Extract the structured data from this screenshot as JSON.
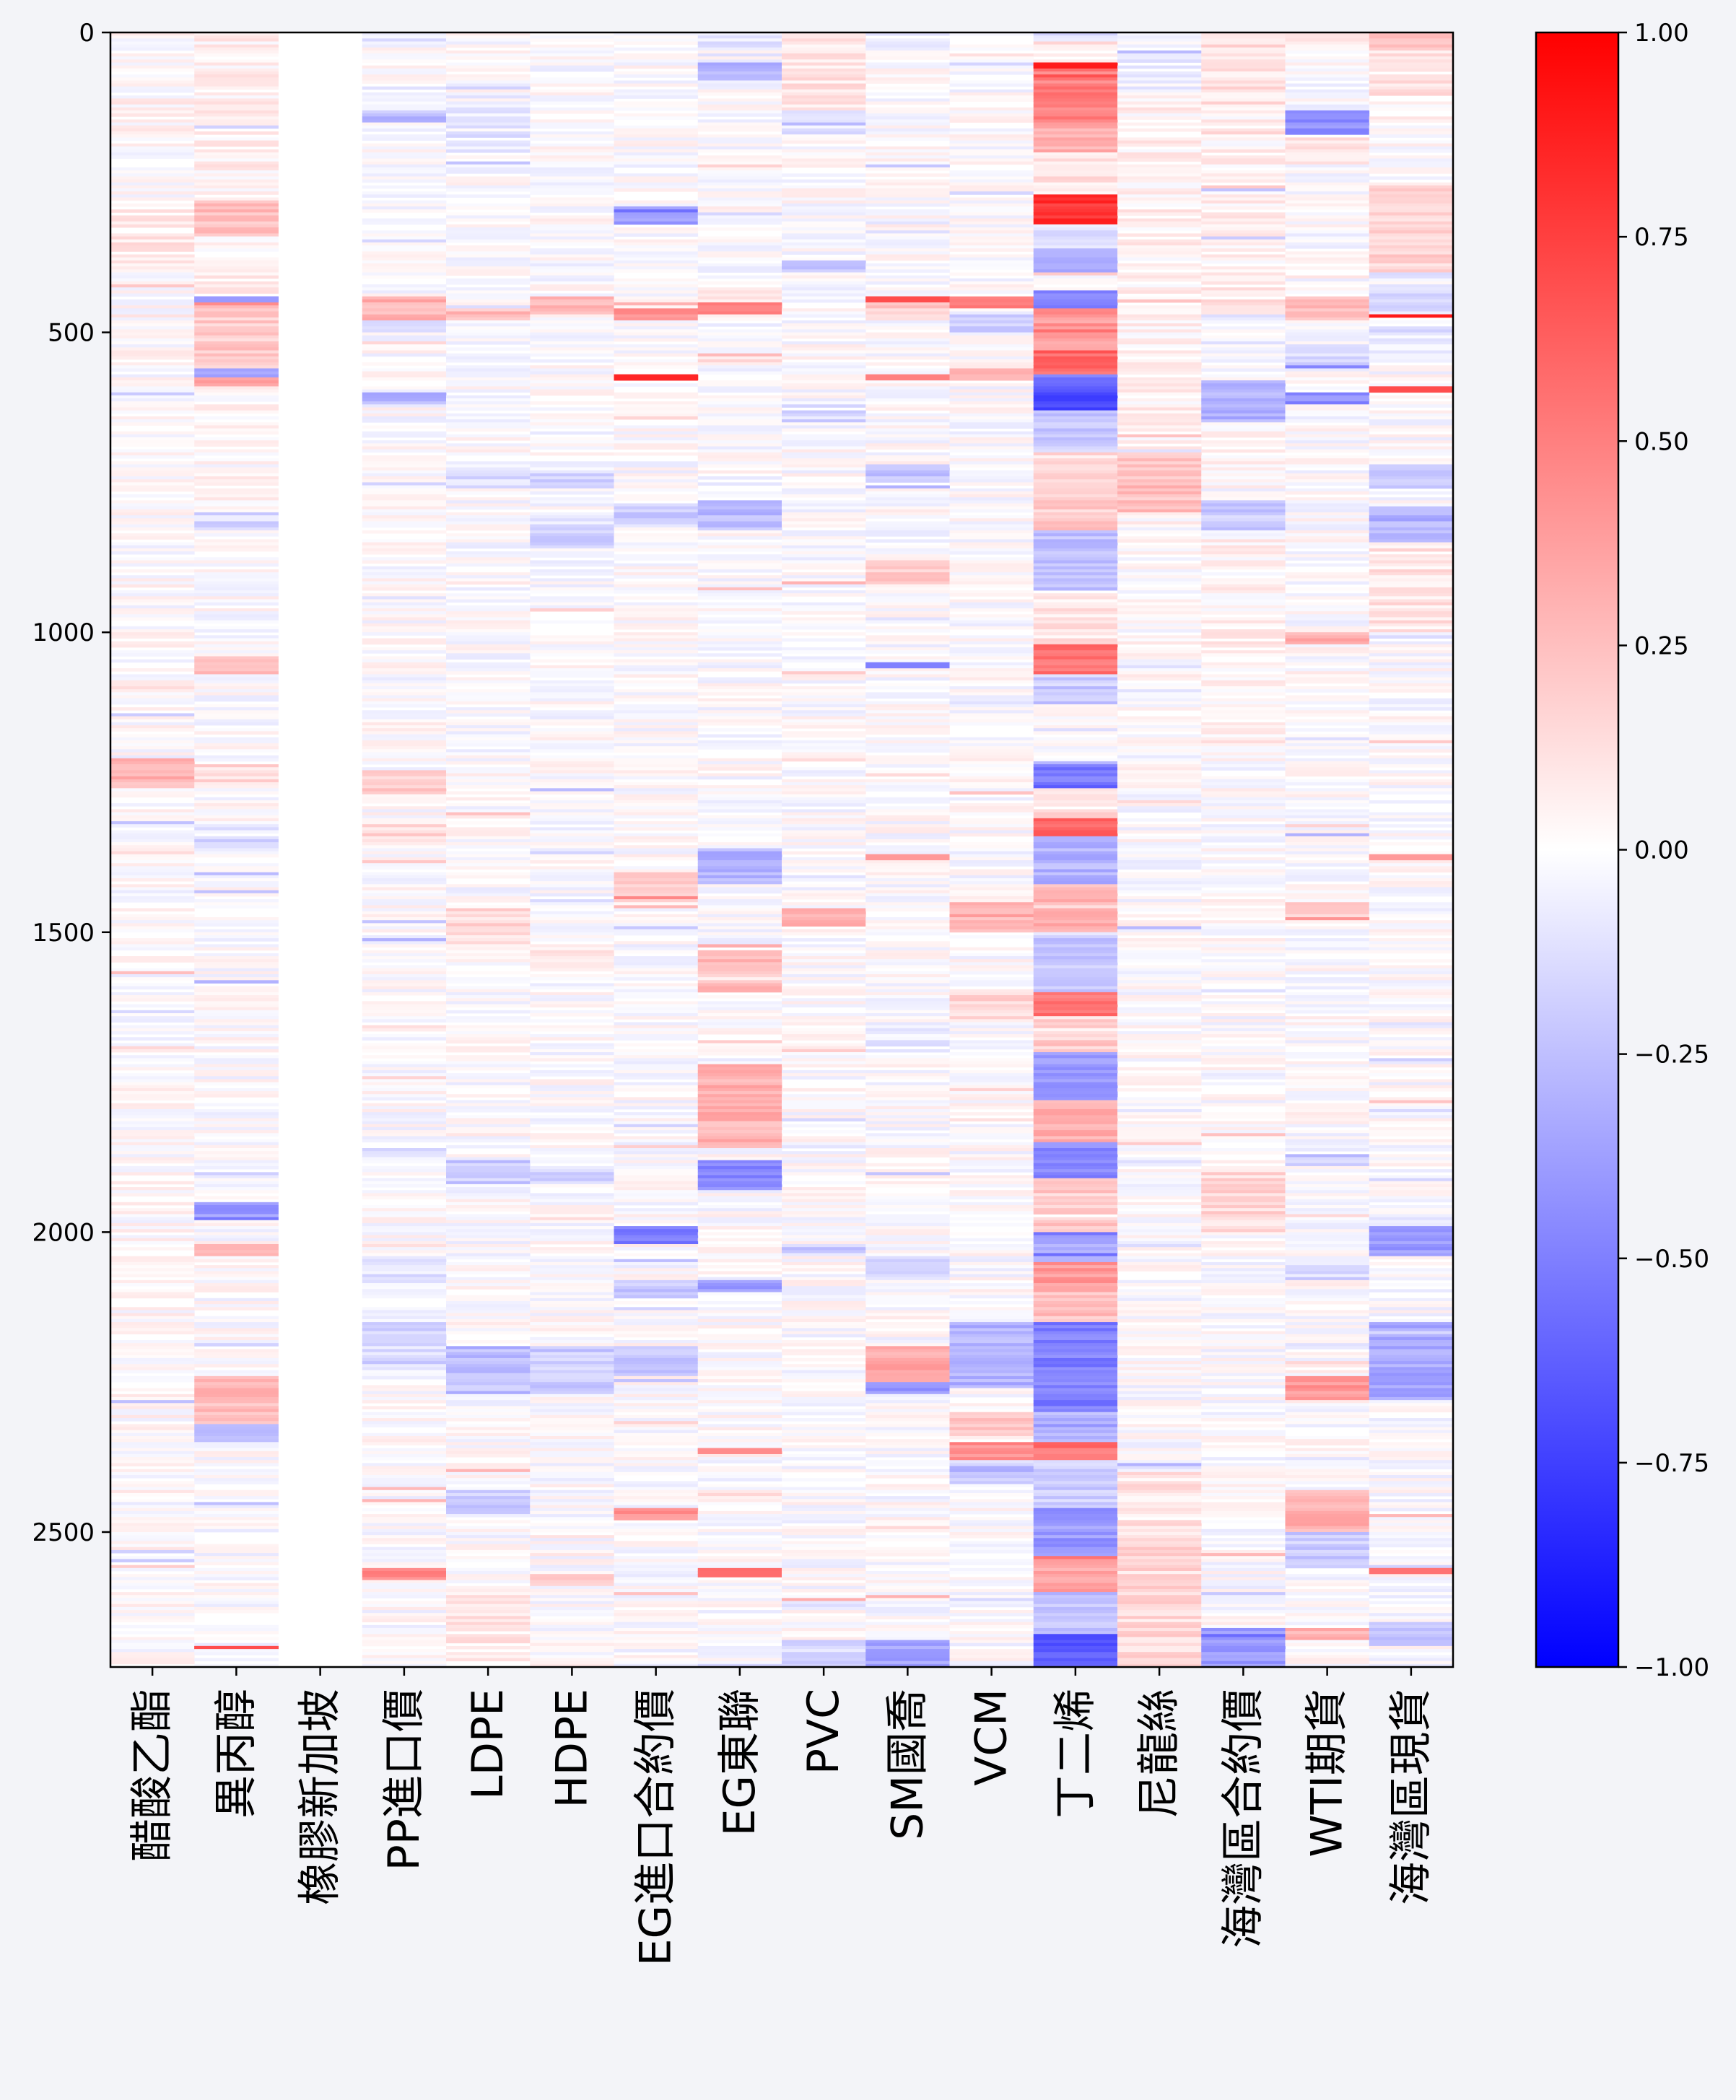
{
  "chart_data": {
    "type": "heatmap",
    "title": "",
    "xlabel": "",
    "ylabel": "",
    "columns": [
      "醋酸乙酯",
      "異丙醇",
      "橡膠新加坡",
      "PP進口價",
      "LDPE",
      "HDPE",
      "EG進口合約價",
      "EG東聯",
      "PVC",
      "SM國喬",
      "VCM",
      "丁二烯",
      "尼龍絲",
      "海灣區合約價",
      "WTI期貨",
      "海灣區現貨"
    ],
    "n_rows": 2725,
    "ylim": [
      0,
      2725
    ],
    "y_inverted": true,
    "yticks": [
      0,
      500,
      1000,
      1500,
      2000,
      2500
    ],
    "ytick_labels": [
      "0",
      "500",
      "1000",
      "1500",
      "2000",
      "2500"
    ],
    "colorbar": {
      "colormap": "bwr",
      "vmin": -1.0,
      "vmax": 1.0,
      "ticks": [
        1.0,
        0.75,
        0.5,
        0.25,
        0.0,
        -0.25,
        -0.5,
        -0.75,
        -1.0
      ],
      "tick_labels": [
        "1.00",
        "0.75",
        "0.50",
        "0.25",
        "0.00",
        "−0.25",
        "−0.50",
        "−0.75",
        "−1.00"
      ],
      "colors": {
        "low": "#0000ff",
        "mid": "#ffffff",
        "high": "#ff0000"
      }
    },
    "column_profiles": [
      {
        "name": "醋酸乙酯",
        "segments": [
          [
            0,
            280,
            0.02
          ],
          [
            280,
            400,
            0.08
          ],
          [
            400,
            1200,
            0.01
          ],
          [
            1210,
            1260,
            0.3
          ],
          [
            1260,
            1700,
            0.0
          ],
          [
            1700,
            2725,
            0.02
          ]
        ]
      },
      {
        "name": "異丙醇",
        "segments": [
          [
            0,
            280,
            0.05
          ],
          [
            280,
            340,
            0.25
          ],
          [
            340,
            440,
            0.05
          ],
          [
            440,
            450,
            -0.4
          ],
          [
            450,
            560,
            0.2
          ],
          [
            560,
            575,
            -0.3
          ],
          [
            575,
            590,
            0.35
          ],
          [
            590,
            800,
            0.02
          ],
          [
            800,
            830,
            -0.15
          ],
          [
            1040,
            1070,
            0.3
          ],
          [
            1220,
            1260,
            0.15
          ],
          [
            1340,
            1360,
            -0.2
          ],
          [
            1950,
            1980,
            -0.4
          ],
          [
            2020,
            2040,
            0.25
          ],
          [
            2240,
            2320,
            0.25
          ],
          [
            2320,
            2350,
            -0.2
          ],
          [
            2690,
            2695,
            0.7
          ]
        ]
      },
      {
        "name": "橡膠新加坡",
        "segments": [
          [
            0,
            2725,
            0.0
          ]
        ]
      },
      {
        "name": "PP進口價",
        "segments": [
          [
            0,
            20,
            -0.1
          ],
          [
            130,
            150,
            -0.25
          ],
          [
            440,
            480,
            0.3
          ],
          [
            480,
            500,
            -0.15
          ],
          [
            600,
            620,
            -0.3
          ],
          [
            1230,
            1270,
            0.2
          ],
          [
            1320,
            1350,
            0.15
          ],
          [
            1860,
            1880,
            -0.1
          ],
          [
            2040,
            2090,
            -0.1
          ],
          [
            2150,
            2230,
            -0.15
          ],
          [
            2560,
            2580,
            0.45
          ]
        ]
      },
      {
        "name": "LDPE",
        "segments": [
          [
            100,
            200,
            -0.1
          ],
          [
            460,
            480,
            0.25
          ],
          [
            730,
            760,
            -0.15
          ],
          [
            1460,
            1520,
            0.15
          ],
          [
            1880,
            1920,
            -0.2
          ],
          [
            2190,
            2270,
            -0.25
          ],
          [
            2430,
            2470,
            -0.2
          ],
          [
            2600,
            2725,
            0.08
          ]
        ]
      },
      {
        "name": "HDPE",
        "segments": [
          [
            0,
            20,
            -0.05
          ],
          [
            440,
            470,
            0.3
          ],
          [
            730,
            760,
            -0.15
          ],
          [
            810,
            860,
            -0.2
          ],
          [
            1520,
            1560,
            0.1
          ],
          [
            1890,
            1920,
            -0.15
          ],
          [
            2190,
            2270,
            -0.2
          ],
          [
            2570,
            2590,
            0.25
          ]
        ]
      },
      {
        "name": "EG進口合約價",
        "segments": [
          [
            0,
            30,
            -0.05
          ],
          [
            290,
            320,
            -0.4
          ],
          [
            460,
            480,
            0.4
          ],
          [
            570,
            580,
            0.85
          ],
          [
            780,
            820,
            -0.2
          ],
          [
            1400,
            1450,
            0.2
          ],
          [
            1990,
            2020,
            -0.5
          ],
          [
            2080,
            2110,
            -0.2
          ],
          [
            2190,
            2240,
            -0.25
          ],
          [
            2460,
            2480,
            0.45
          ]
        ]
      },
      {
        "name": "EG東聯",
        "segments": [
          [
            0,
            30,
            -0.1
          ],
          [
            50,
            80,
            -0.3
          ],
          [
            430,
            450,
            0.1
          ],
          [
            450,
            470,
            0.55
          ],
          [
            780,
            830,
            -0.25
          ],
          [
            1360,
            1420,
            -0.3
          ],
          [
            1520,
            1600,
            0.25
          ],
          [
            1720,
            1860,
            0.3
          ],
          [
            1880,
            1930,
            -0.45
          ],
          [
            2080,
            2100,
            -0.4
          ],
          [
            2360,
            2370,
            0.45
          ],
          [
            2560,
            2575,
            0.6
          ]
        ]
      },
      {
        "name": "PVC",
        "segments": [
          [
            0,
            120,
            0.1
          ],
          [
            130,
            170,
            -0.1
          ],
          [
            380,
            400,
            -0.2
          ],
          [
            620,
            650,
            -0.15
          ],
          [
            1460,
            1490,
            0.3
          ],
          [
            2020,
            2030,
            -0.2
          ],
          [
            2680,
            2725,
            -0.15
          ]
        ]
      },
      {
        "name": "SM國喬",
        "segments": [
          [
            0,
            30,
            -0.05
          ],
          [
            440,
            450,
            0.7
          ],
          [
            450,
            480,
            0.2
          ],
          [
            570,
            580,
            0.5
          ],
          [
            720,
            760,
            -0.25
          ],
          [
            880,
            920,
            0.2
          ],
          [
            1050,
            1060,
            -0.5
          ],
          [
            1370,
            1380,
            0.4
          ],
          [
            1650,
            1710,
            -0.1
          ],
          [
            2040,
            2080,
            -0.15
          ],
          [
            2190,
            2250,
            0.35
          ],
          [
            2250,
            2270,
            -0.4
          ],
          [
            2680,
            2725,
            -0.35
          ]
        ]
      },
      {
        "name": "VCM",
        "segments": [
          [
            0,
            50,
            0.05
          ],
          [
            440,
            460,
            0.5
          ],
          [
            470,
            500,
            -0.2
          ],
          [
            560,
            580,
            0.25
          ],
          [
            1450,
            1500,
            0.25
          ],
          [
            1600,
            1650,
            0.15
          ],
          [
            2150,
            2260,
            -0.3
          ],
          [
            2300,
            2340,
            0.2
          ],
          [
            2350,
            2380,
            0.45
          ],
          [
            2380,
            2420,
            -0.25
          ]
        ]
      },
      {
        "name": "丁二烯",
        "segments": [
          [
            0,
            20,
            -0.1
          ],
          [
            50,
            60,
            0.9
          ],
          [
            60,
            150,
            0.5
          ],
          [
            150,
            200,
            0.3
          ],
          [
            200,
            270,
            0.1
          ],
          [
            270,
            320,
            0.8
          ],
          [
            320,
            360,
            -0.1
          ],
          [
            360,
            400,
            -0.3
          ],
          [
            430,
            460,
            -0.45
          ],
          [
            460,
            530,
            0.4
          ],
          [
            530,
            570,
            0.6
          ],
          [
            570,
            590,
            -0.5
          ],
          [
            590,
            630,
            -0.7
          ],
          [
            630,
            700,
            -0.2
          ],
          [
            700,
            830,
            0.2
          ],
          [
            830,
            930,
            -0.25
          ],
          [
            930,
            1020,
            0.1
          ],
          [
            1020,
            1070,
            0.55
          ],
          [
            1070,
            1120,
            -0.2
          ],
          [
            1220,
            1260,
            -0.5
          ],
          [
            1260,
            1310,
            0.15
          ],
          [
            1310,
            1340,
            0.6
          ],
          [
            1340,
            1420,
            -0.3
          ],
          [
            1420,
            1500,
            0.3
          ],
          [
            1500,
            1600,
            -0.2
          ],
          [
            1600,
            1640,
            0.55
          ],
          [
            1640,
            1700,
            0.2
          ],
          [
            1700,
            1780,
            -0.4
          ],
          [
            1780,
            1850,
            0.3
          ],
          [
            1850,
            1910,
            -0.45
          ],
          [
            1910,
            2000,
            0.2
          ],
          [
            2000,
            2050,
            -0.35
          ],
          [
            2050,
            2100,
            0.4
          ],
          [
            2100,
            2150,
            0.25
          ],
          [
            2150,
            2300,
            -0.5
          ],
          [
            2300,
            2350,
            -0.3
          ],
          [
            2350,
            2380,
            0.55
          ],
          [
            2380,
            2460,
            -0.2
          ],
          [
            2460,
            2540,
            -0.4
          ],
          [
            2540,
            2600,
            0.35
          ],
          [
            2600,
            2670,
            -0.25
          ],
          [
            2670,
            2725,
            -0.65
          ]
        ]
      },
      {
        "name": "尼龍絲",
        "segments": [
          [
            0,
            100,
            -0.05
          ],
          [
            100,
            250,
            0.05
          ],
          [
            250,
            700,
            0.05
          ],
          [
            700,
            800,
            0.25
          ],
          [
            800,
            1100,
            0.02
          ],
          [
            1100,
            2400,
            0.0
          ],
          [
            2400,
            2520,
            0.1
          ],
          [
            2520,
            2725,
            0.15
          ]
        ]
      },
      {
        "name": "海灣區合約價",
        "segments": [
          [
            0,
            120,
            0.12
          ],
          [
            120,
            400,
            0.05
          ],
          [
            400,
            470,
            0.1
          ],
          [
            470,
            520,
            -0.05
          ],
          [
            580,
            650,
            -0.3
          ],
          [
            650,
            760,
            0.05
          ],
          [
            780,
            830,
            -0.2
          ],
          [
            840,
            1200,
            0.05
          ],
          [
            1900,
            2000,
            0.15
          ],
          [
            2660,
            2725,
            -0.4
          ]
        ]
      },
      {
        "name": "WTI期貨",
        "segments": [
          [
            0,
            30,
            0.05
          ],
          [
            130,
            170,
            -0.45
          ],
          [
            170,
            220,
            0.1
          ],
          [
            440,
            480,
            0.25
          ],
          [
            520,
            560,
            -0.2
          ],
          [
            600,
            620,
            -0.45
          ],
          [
            1000,
            1020,
            0.3
          ],
          [
            1450,
            1480,
            0.2
          ],
          [
            1870,
            1890,
            -0.2
          ],
          [
            2050,
            2080,
            -0.15
          ],
          [
            2240,
            2280,
            0.4
          ],
          [
            2430,
            2500,
            0.3
          ],
          [
            2500,
            2560,
            -0.2
          ],
          [
            2660,
            2680,
            0.3
          ]
        ]
      },
      {
        "name": "海灣區現貨",
        "segments": [
          [
            0,
            30,
            0.2
          ],
          [
            30,
            120,
            0.1
          ],
          [
            120,
            250,
            0.02
          ],
          [
            250,
            400,
            0.15
          ],
          [
            420,
            470,
            -0.15
          ],
          [
            470,
            475,
            0.9
          ],
          [
            475,
            540,
            -0.1
          ],
          [
            590,
            600,
            0.7
          ],
          [
            720,
            760,
            -0.25
          ],
          [
            790,
            850,
            -0.3
          ],
          [
            850,
            1000,
            0.1
          ],
          [
            1370,
            1380,
            0.4
          ],
          [
            1990,
            2040,
            -0.35
          ],
          [
            2150,
            2280,
            -0.35
          ],
          [
            2560,
            2570,
            0.55
          ],
          [
            2650,
            2690,
            -0.2
          ]
        ]
      }
    ]
  }
}
